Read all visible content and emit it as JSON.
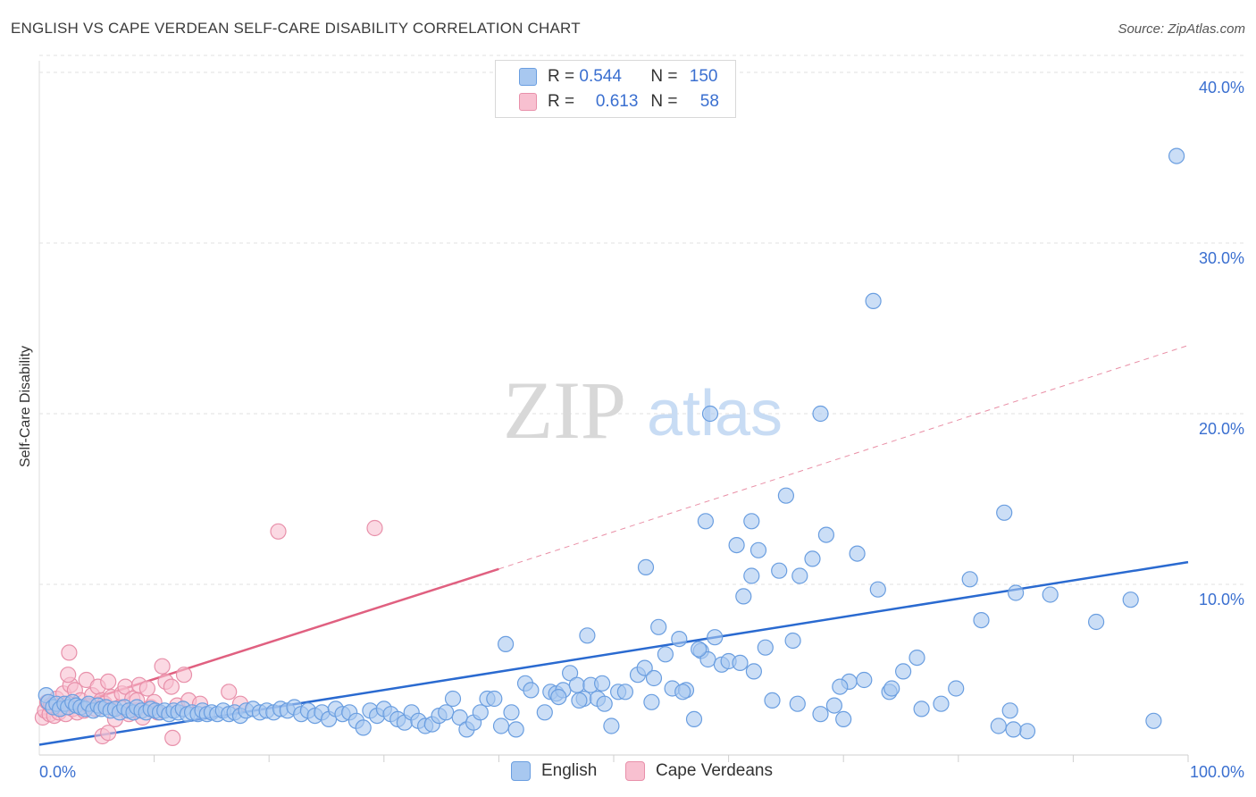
{
  "chart_data": {
    "type": "scatter",
    "title": "ENGLISH VS CAPE VERDEAN SELF-CARE DISABILITY CORRELATION CHART",
    "source": "Source: ZipAtlas.com",
    "xlabel": "",
    "ylabel": "Self-Care Disability",
    "xlim": [
      0,
      100
    ],
    "ylim": [
      0,
      41
    ],
    "x_tick_labels": [
      {
        "value": 0,
        "label": "0.0%"
      },
      {
        "value": 100,
        "label": "100.0%"
      }
    ],
    "y_tick_labels": [
      {
        "value": 10,
        "label": "10.0%"
      },
      {
        "value": 20,
        "label": "20.0%"
      },
      {
        "value": 30,
        "label": "30.0%"
      },
      {
        "value": 40,
        "label": "40.0%"
      }
    ],
    "watermark": {
      "zip": "ZIP",
      "atlas": "atlas"
    },
    "legend": {
      "r_label": "R =",
      "n_label": "N =",
      "entries": [
        {
          "name": "English",
          "r": "0.544",
          "n": "150"
        },
        {
          "name": "Cape Verdeans",
          "r": "0.613",
          "n": "58"
        }
      ]
    },
    "series": [
      {
        "name": "English",
        "color": "#a8c8f0",
        "stroke": "#6a9ee0",
        "line_color": "#2a6ad0",
        "trend": {
          "x0": 0,
          "y0": 0.6,
          "x1": 100,
          "y1": 11.3
        },
        "points": [
          [
            0.6,
            3.5
          ],
          [
            0.8,
            3.1
          ],
          [
            1.2,
            2.8
          ],
          [
            1.5,
            3.0
          ],
          [
            1.8,
            2.7
          ],
          [
            2.2,
            3.0
          ],
          [
            2.5,
            2.8
          ],
          [
            2.9,
            3.1
          ],
          [
            3.2,
            2.9
          ],
          [
            3.6,
            2.8
          ],
          [
            4.0,
            2.7
          ],
          [
            4.3,
            3.0
          ],
          [
            4.7,
            2.6
          ],
          [
            5.1,
            2.9
          ],
          [
            5.4,
            2.7
          ],
          [
            5.8,
            2.8
          ],
          [
            6.2,
            2.6
          ],
          [
            6.6,
            2.7
          ],
          [
            7.0,
            2.5
          ],
          [
            7.4,
            2.8
          ],
          [
            7.8,
            2.6
          ],
          [
            8.2,
            2.5
          ],
          [
            8.5,
            2.8
          ],
          [
            8.9,
            2.6
          ],
          [
            9.3,
            2.5
          ],
          [
            9.7,
            2.7
          ],
          [
            10.1,
            2.6
          ],
          [
            10.5,
            2.5
          ],
          [
            10.9,
            2.6
          ],
          [
            11.3,
            2.4
          ],
          [
            11.7,
            2.6
          ],
          [
            12.1,
            2.5
          ],
          [
            12.5,
            2.7
          ],
          [
            12.9,
            2.4
          ],
          [
            13.3,
            2.5
          ],
          [
            13.8,
            2.4
          ],
          [
            14.2,
            2.6
          ],
          [
            14.6,
            2.4
          ],
          [
            15.0,
            2.5
          ],
          [
            15.5,
            2.4
          ],
          [
            16.0,
            2.6
          ],
          [
            16.5,
            2.4
          ],
          [
            17.0,
            2.5
          ],
          [
            17.5,
            2.3
          ],
          [
            18.0,
            2.6
          ],
          [
            18.6,
            2.7
          ],
          [
            19.2,
            2.5
          ],
          [
            19.8,
            2.6
          ],
          [
            20.4,
            2.5
          ],
          [
            21.0,
            2.7
          ],
          [
            21.6,
            2.6
          ],
          [
            22.2,
            2.8
          ],
          [
            22.8,
            2.4
          ],
          [
            23.4,
            2.6
          ],
          [
            24.0,
            2.3
          ],
          [
            24.6,
            2.5
          ],
          [
            25.2,
            2.1
          ],
          [
            25.8,
            2.7
          ],
          [
            26.4,
            2.4
          ],
          [
            27.0,
            2.5
          ],
          [
            27.6,
            2.0
          ],
          [
            28.2,
            1.6
          ],
          [
            28.8,
            2.6
          ],
          [
            29.4,
            2.3
          ],
          [
            30.0,
            2.7
          ],
          [
            30.6,
            2.4
          ],
          [
            31.2,
            2.1
          ],
          [
            31.8,
            1.9
          ],
          [
            32.4,
            2.5
          ],
          [
            33.0,
            2.0
          ],
          [
            33.6,
            1.7
          ],
          [
            34.2,
            1.8
          ],
          [
            34.8,
            2.3
          ],
          [
            35.4,
            2.5
          ],
          [
            36.0,
            3.3
          ],
          [
            36.6,
            2.2
          ],
          [
            37.2,
            1.5
          ],
          [
            37.8,
            1.9
          ],
          [
            38.4,
            2.5
          ],
          [
            39.0,
            3.3
          ],
          [
            39.6,
            3.3
          ],
          [
            40.2,
            1.7
          ],
          [
            41.1,
            2.5
          ],
          [
            40.6,
            6.5
          ],
          [
            41.5,
            1.5
          ],
          [
            42.3,
            4.2
          ],
          [
            42.8,
            3.8
          ],
          [
            44.0,
            2.5
          ],
          [
            44.5,
            3.7
          ],
          [
            45.0,
            3.6
          ],
          [
            45.6,
            3.8
          ],
          [
            46.2,
            4.8
          ],
          [
            46.8,
            4.1
          ],
          [
            47.4,
            3.3
          ],
          [
            48.0,
            4.1
          ],
          [
            48.6,
            3.3
          ],
          [
            49.2,
            3.0
          ],
          [
            49.8,
            1.7
          ],
          [
            50.4,
            3.7
          ],
          [
            51.0,
            3.7
          ],
          [
            47.7,
            7.0
          ],
          [
            52.1,
            4.7
          ],
          [
            52.7,
            5.1
          ],
          [
            53.3,
            3.1
          ],
          [
            53.9,
            7.5
          ],
          [
            54.5,
            5.9
          ],
          [
            55.1,
            3.9
          ],
          [
            55.7,
            6.8
          ],
          [
            56.3,
            3.8
          ],
          [
            57.0,
            2.1
          ],
          [
            57.6,
            6.1
          ],
          [
            58.2,
            5.6
          ],
          [
            58.8,
            6.9
          ],
          [
            59.4,
            5.3
          ],
          [
            60.0,
            5.5
          ],
          [
            60.7,
            12.3
          ],
          [
            61.3,
            9.3
          ],
          [
            62.0,
            10.5
          ],
          [
            62.6,
            12.0
          ],
          [
            63.2,
            6.3
          ],
          [
            63.8,
            3.2
          ],
          [
            64.4,
            10.8
          ],
          [
            65.0,
            15.2
          ],
          [
            65.6,
            6.7
          ],
          [
            66.2,
            10.5
          ],
          [
            67.3,
            11.5
          ],
          [
            68.0,
            2.4
          ],
          [
            68.5,
            12.9
          ],
          [
            69.2,
            2.9
          ],
          [
            70.0,
            2.1
          ],
          [
            70.5,
            4.3
          ],
          [
            71.2,
            11.8
          ],
          [
            73.0,
            9.7
          ],
          [
            74.0,
            3.7
          ],
          [
            75.2,
            4.9
          ],
          [
            76.4,
            5.7
          ],
          [
            76.8,
            2.7
          ],
          [
            78.5,
            3.0
          ],
          [
            79.8,
            3.9
          ],
          [
            81.0,
            10.3
          ],
          [
            82.0,
            7.9
          ],
          [
            83.5,
            1.7
          ],
          [
            84.0,
            14.2
          ],
          [
            84.5,
            2.6
          ],
          [
            85.0,
            9.5
          ],
          [
            86.0,
            1.4
          ],
          [
            88.0,
            9.4
          ],
          [
            92.0,
            7.8
          ],
          [
            95.0,
            9.1
          ],
          [
            97.0,
            2.0
          ],
          [
            49.0,
            4.2
          ],
          [
            56.0,
            3.7
          ],
          [
            66.0,
            3.0
          ],
          [
            71.8,
            4.4
          ],
          [
            84.8,
            1.5
          ],
          [
            74.2,
            3.9
          ],
          [
            61.0,
            5.4
          ],
          [
            58.4,
            20.0
          ],
          [
            68.0,
            20.0
          ],
          [
            62.2,
            4.9
          ],
          [
            72.6,
            26.6
          ],
          [
            62.0,
            13.7
          ],
          [
            58.0,
            13.7
          ],
          [
            99.0,
            35.1
          ],
          [
            52.8,
            11.0
          ],
          [
            45.2,
            3.4
          ],
          [
            47.0,
            3.2
          ],
          [
            53.5,
            4.5
          ],
          [
            57.4,
            6.2
          ],
          [
            69.7,
            4.0
          ]
        ]
      },
      {
        "name": "Cape Verdeans",
        "color": "#f8c0d0",
        "stroke": "#e890aa",
        "line_color": "#e06080",
        "trend": {
          "x0": 0,
          "y0": 2.3,
          "x1": 40,
          "y1": 10.9
        },
        "trend_ext": {
          "x0": 40,
          "y0": 10.9,
          "x1": 100,
          "y1": 24.0
        },
        "points": [
          [
            0.3,
            2.2
          ],
          [
            0.5,
            2.6
          ],
          [
            0.7,
            3.1
          ],
          [
            0.9,
            2.4
          ],
          [
            1.1,
            2.9
          ],
          [
            1.3,
            2.3
          ],
          [
            1.5,
            3.3
          ],
          [
            1.7,
            2.5
          ],
          [
            1.9,
            2.8
          ],
          [
            2.1,
            3.6
          ],
          [
            2.3,
            2.4
          ],
          [
            2.5,
            3.0
          ],
          [
            2.7,
            4.1
          ],
          [
            2.9,
            2.7
          ],
          [
            3.1,
            3.8
          ],
          [
            3.3,
            2.5
          ],
          [
            3.6,
            3.2
          ],
          [
            3.9,
            2.6
          ],
          [
            4.1,
            4.4
          ],
          [
            4.3,
            2.9
          ],
          [
            4.6,
            3.5
          ],
          [
            4.9,
            2.7
          ],
          [
            5.1,
            4.0
          ],
          [
            5.4,
            3.2
          ],
          [
            5.7,
            3.0
          ],
          [
            6.0,
            4.3
          ],
          [
            6.3,
            3.4
          ],
          [
            6.6,
            2.1
          ],
          [
            7.0,
            2.8
          ],
          [
            7.2,
            3.6
          ],
          [
            7.5,
            4.0
          ],
          [
            7.8,
            2.4
          ],
          [
            8.1,
            3.3
          ],
          [
            8.4,
            2.6
          ],
          [
            8.7,
            4.1
          ],
          [
            9.0,
            2.2
          ],
          [
            9.4,
            3.9
          ],
          [
            9.7,
            2.8
          ],
          [
            10.0,
            3.1
          ],
          [
            10.3,
            2.5
          ],
          [
            10.7,
            5.2
          ],
          [
            11.0,
            4.3
          ],
          [
            11.5,
            4.0
          ],
          [
            12.0,
            2.9
          ],
          [
            12.6,
            4.7
          ],
          [
            13.0,
            3.2
          ],
          [
            14.0,
            3.0
          ],
          [
            16.5,
            3.7
          ],
          [
            17.5,
            3.0
          ],
          [
            2.5,
            4.7
          ],
          [
            2.6,
            6.0
          ],
          [
            5.5,
            1.1
          ],
          [
            6.0,
            1.3
          ],
          [
            8.5,
            3.2
          ],
          [
            11.6,
            1.0
          ],
          [
            20.8,
            13.1
          ],
          [
            29.2,
            13.3
          ],
          [
            1.0,
            2.9
          ]
        ]
      }
    ]
  }
}
